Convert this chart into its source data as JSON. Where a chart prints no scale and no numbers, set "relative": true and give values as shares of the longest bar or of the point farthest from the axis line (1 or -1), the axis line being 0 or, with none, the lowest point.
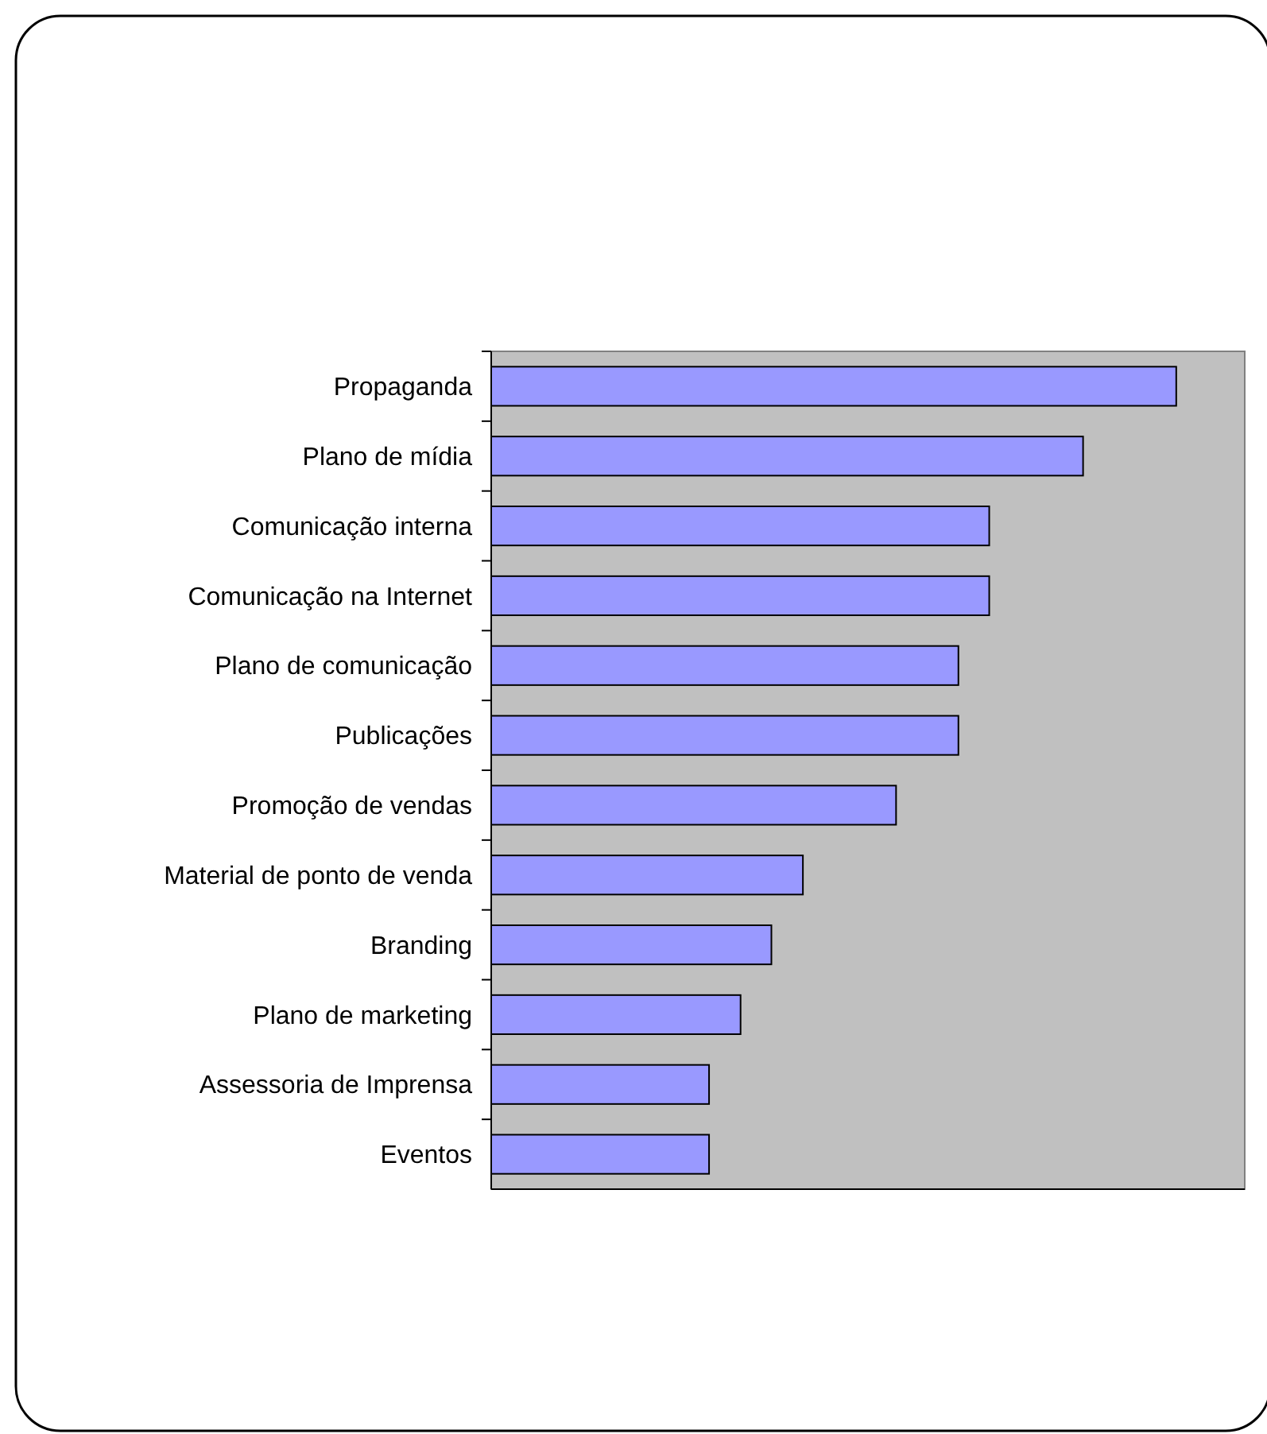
{
  "chart_data": {
    "type": "bar",
    "orientation": "horizontal",
    "relative": true,
    "categories": [
      "Propaganda",
      "Plano de mídia",
      "Comunicação interna",
      "Comunicação na Internet",
      "Plano de comunicação",
      "Publicações",
      "Promoção de vendas",
      "Material de ponto de venda",
      "Branding",
      "Plano de marketing",
      "Assessoria de Imprensa",
      "Eventos"
    ],
    "values": [
      1,
      0.864,
      0.727,
      0.727,
      0.682,
      0.682,
      0.591,
      0.455,
      0.409,
      0.364,
      0.318,
      0.318
    ],
    "color": "#9999ff"
  }
}
